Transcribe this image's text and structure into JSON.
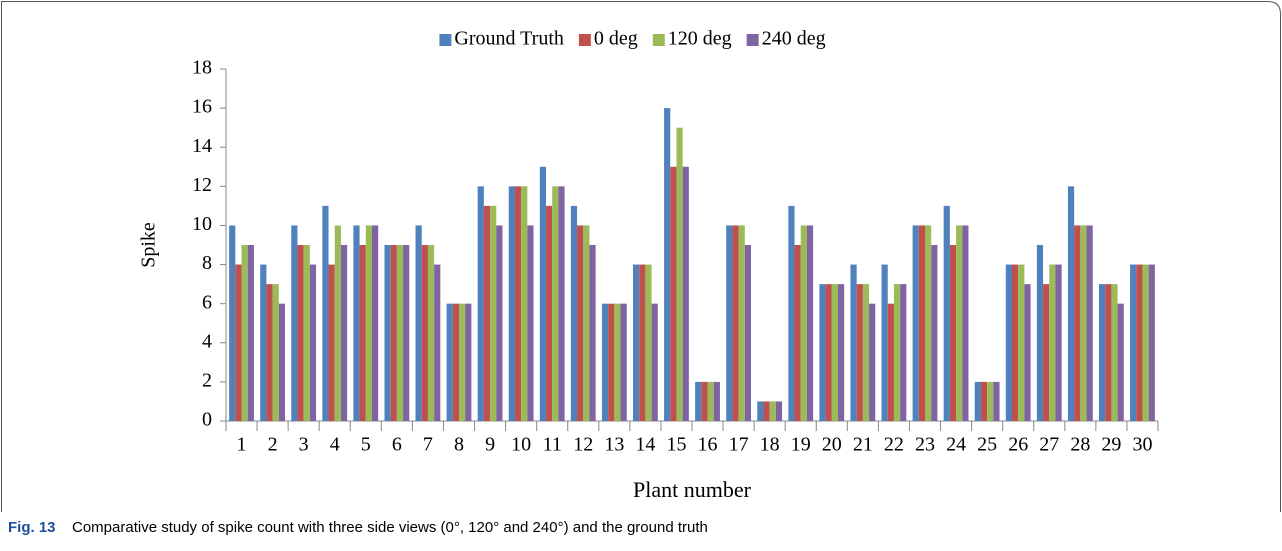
{
  "chart_data": {
    "type": "bar",
    "y_label": "Spike",
    "x_label": "Plant number",
    "caption_label": "Fig. 13",
    "caption": "Comparative study of spike count with three side views (0°, 120° and 240°) and the ground truth",
    "categories": [
      1,
      2,
      3,
      4,
      5,
      6,
      7,
      8,
      9,
      10,
      11,
      12,
      13,
      14,
      15,
      16,
      17,
      18,
      19,
      20,
      21,
      22,
      23,
      24,
      25,
      26,
      27,
      28,
      29,
      30
    ],
    "series": [
      {
        "name": "Ground Truth",
        "color": "#4f81bd",
        "values": [
          10,
          8,
          10,
          11,
          10,
          9,
          10,
          6,
          12,
          12,
          13,
          11,
          6,
          8,
          16,
          2,
          10,
          1,
          11,
          7,
          8,
          8,
          10,
          11,
          2,
          8,
          9,
          12,
          7,
          8
        ]
      },
      {
        "name": "0 deg",
        "color": "#c0504d",
        "values": [
          8,
          7,
          9,
          8,
          9,
          9,
          9,
          6,
          11,
          12,
          11,
          10,
          6,
          8,
          13,
          2,
          10,
          1,
          9,
          7,
          7,
          6,
          10,
          9,
          2,
          8,
          7,
          10,
          7,
          8
        ]
      },
      {
        "name": "120 deg",
        "color": "#9bbb59",
        "values": [
          9,
          7,
          9,
          10,
          10,
          9,
          9,
          6,
          11,
          12,
          12,
          10,
          6,
          8,
          15,
          2,
          10,
          1,
          10,
          7,
          7,
          7,
          10,
          10,
          2,
          8,
          8,
          10,
          7,
          8
        ]
      },
      {
        "name": "240 deg",
        "color": "#8064a2",
        "values": [
          9,
          6,
          8,
          9,
          10,
          9,
          8,
          6,
          10,
          10,
          12,
          9,
          6,
          6,
          13,
          2,
          9,
          1,
          10,
          7,
          6,
          7,
          9,
          10,
          2,
          7,
          8,
          10,
          6,
          8
        ]
      }
    ],
    "ylim": [
      0,
      18
    ],
    "yticks": [
      0,
      2,
      4,
      6,
      8,
      10,
      12,
      14,
      16,
      18
    ],
    "grid": false,
    "legend": "top"
  }
}
